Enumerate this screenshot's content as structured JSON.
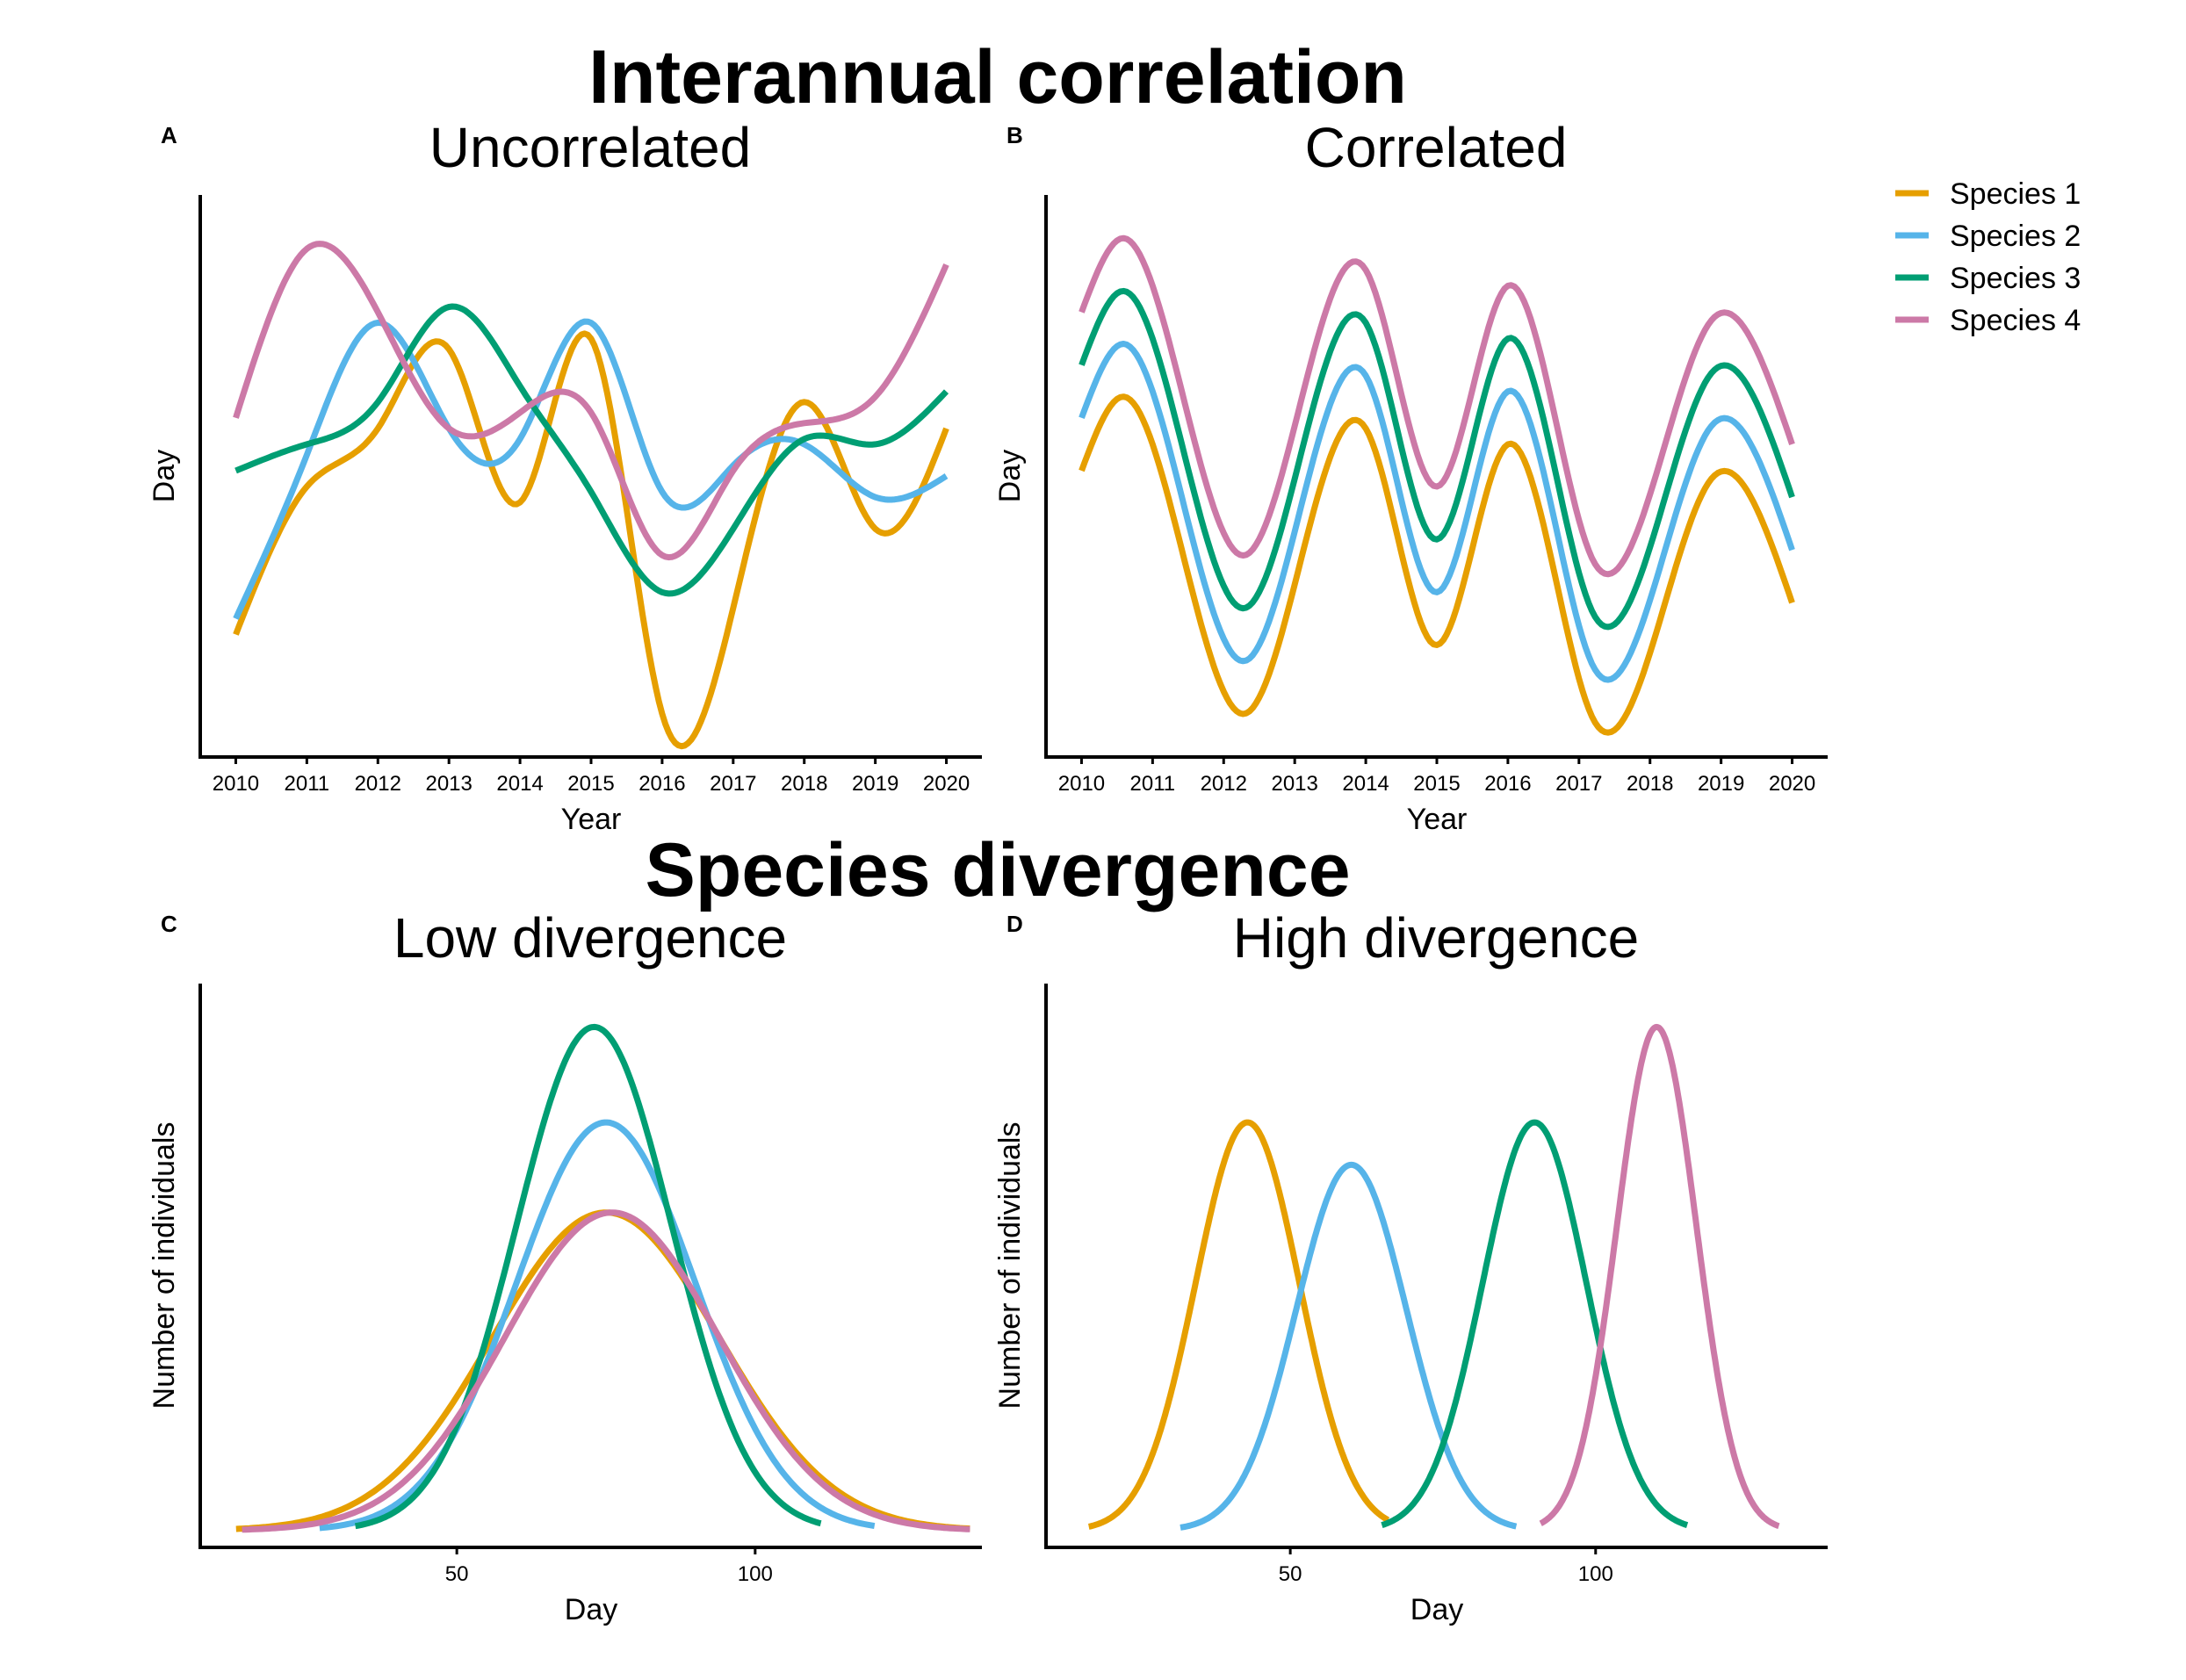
{
  "figure": {
    "section_titles": [
      "Interannual correlation",
      "Species divergence"
    ]
  },
  "colors": {
    "Species 1": "#E69F00",
    "Species 2": "#56B4E9",
    "Species 3": "#009E73",
    "Species 4": "#CC79A7"
  },
  "legend": {
    "entries": [
      "Species 1",
      "Species 2",
      "Species 3",
      "Species 4"
    ]
  },
  "chart_data": [
    {
      "id": "A",
      "type": "line",
      "letter": "A",
      "title": "Uncorrelated",
      "xlabel": "Year",
      "ylabel": "Day",
      "xlim": [
        2009.5,
        2020.5
      ],
      "ylim": [
        0,
        100
      ],
      "xticks": [
        2010,
        2011,
        2012,
        2013,
        2014,
        2015,
        2016,
        2017,
        2018,
        2019,
        2020
      ],
      "yticks": [],
      "smooth": true,
      "series": [
        {
          "name": "Species 1",
          "x": [
            2010,
            2011,
            2012,
            2013,
            2014,
            2015,
            2016,
            2017,
            2018,
            2019,
            2020
          ],
          "y": [
            20,
            48,
            59,
            74,
            45,
            76,
            5,
            25,
            64,
            40,
            59
          ]
        },
        {
          "name": "Species 2",
          "x": [
            2010,
            2011,
            2012,
            2013,
            2014,
            2015,
            2016,
            2017,
            2018,
            2019,
            2020
          ],
          "y": [
            23,
            54,
            79,
            59,
            57,
            79,
            47,
            52,
            56,
            46,
            50
          ]
        },
        {
          "name": "Species 3",
          "x": [
            2010,
            2011,
            2012,
            2013,
            2014,
            2015,
            2016,
            2017,
            2018,
            2019,
            2020
          ],
          "y": [
            51,
            56,
            64,
            82,
            67,
            47,
            28,
            40,
            57,
            56,
            66
          ]
        },
        {
          "name": "Species 4",
          "x": [
            2010,
            2011,
            2012,
            2013,
            2014,
            2015,
            2016,
            2017,
            2018,
            2019,
            2020
          ],
          "y": [
            61,
            93,
            81,
            59,
            62,
            62,
            35,
            51,
            60,
            65,
            90
          ]
        }
      ]
    },
    {
      "id": "B",
      "type": "line",
      "letter": "B",
      "title": "Correlated",
      "xlabel": "Year",
      "ylabel": "Day",
      "xlim": [
        2009.5,
        2020.5
      ],
      "ylim": [
        0,
        100
      ],
      "xticks": [
        2010,
        2011,
        2012,
        2013,
        2014,
        2015,
        2016,
        2017,
        2018,
        2019,
        2020
      ],
      "yticks": [],
      "smooth": true,
      "series": [
        {
          "name": "Species 1",
          "x": [
            2010,
            2010.6,
            2012.3,
            2014,
            2015,
            2016,
            2017.2,
            2018.9,
            2020
          ],
          "y": [
            51,
            65,
            5,
            59,
            18,
            56,
            4,
            50,
            26
          ]
        },
        {
          "name": "Species 2",
          "x": [
            2010,
            2010.6,
            2012.3,
            2014,
            2015,
            2016,
            2017.2,
            2018.9,
            2020
          ],
          "y": [
            61,
            75,
            15,
            69,
            28,
            66,
            14,
            60,
            36
          ]
        },
        {
          "name": "Species 3",
          "x": [
            2010,
            2010.6,
            2012.3,
            2014,
            2015,
            2016,
            2017.2,
            2018.9,
            2020
          ],
          "y": [
            71,
            85,
            25,
            79,
            38,
            76,
            24,
            70,
            46
          ]
        },
        {
          "name": "Species 4",
          "x": [
            2010,
            2010.6,
            2012.3,
            2014,
            2015,
            2016,
            2017.2,
            2018.9,
            2020
          ],
          "y": [
            81,
            95,
            35,
            89,
            48,
            86,
            34,
            80,
            56
          ]
        }
      ]
    },
    {
      "id": "C",
      "type": "line",
      "letter": "C",
      "title": "Low divergence",
      "xlabel": "Day",
      "ylabel": "Number of individuals",
      "xlim": [
        7,
        138
      ],
      "ylim": [
        0,
        100
      ],
      "xticks": [
        50,
        100
      ],
      "yticks": [],
      "curves": [
        {
          "name": "Species 1",
          "mean": 75,
          "sd": 19,
          "peak": 60,
          "range": [
            13,
            136
          ]
        },
        {
          "name": "Species 2",
          "mean": 75,
          "sd": 15,
          "peak": 77,
          "range": [
            27,
            120
          ]
        },
        {
          "name": "Species 3",
          "mean": 73,
          "sd": 13,
          "peak": 95,
          "range": [
            33,
            111
          ]
        },
        {
          "name": "Species 4",
          "mean": 76,
          "sd": 18,
          "peak": 60,
          "range": [
            14,
            136
          ]
        }
      ]
    },
    {
      "id": "D",
      "type": "line",
      "letter": "D",
      "title": "High divergence",
      "xlabel": "Day",
      "ylabel": "Number of individuals",
      "xlim": [
        10,
        138
      ],
      "ylim": [
        0,
        100
      ],
      "xticks": [
        50,
        100
      ],
      "yticks": [],
      "curves": [
        {
          "name": "Species 1",
          "mean": 43,
          "sd": 8.5,
          "peak": 77,
          "range": [
            17,
            66
          ]
        },
        {
          "name": "Species 2",
          "mean": 60,
          "sd": 9,
          "peak": 69,
          "range": [
            32,
            87
          ]
        },
        {
          "name": "Species 3",
          "mean": 90,
          "sd": 8.5,
          "peak": 77,
          "range": [
            65,
            115
          ]
        },
        {
          "name": "Species 4",
          "mean": 110,
          "sd": 6.5,
          "peak": 95,
          "range": [
            91,
            130
          ]
        }
      ]
    }
  ]
}
